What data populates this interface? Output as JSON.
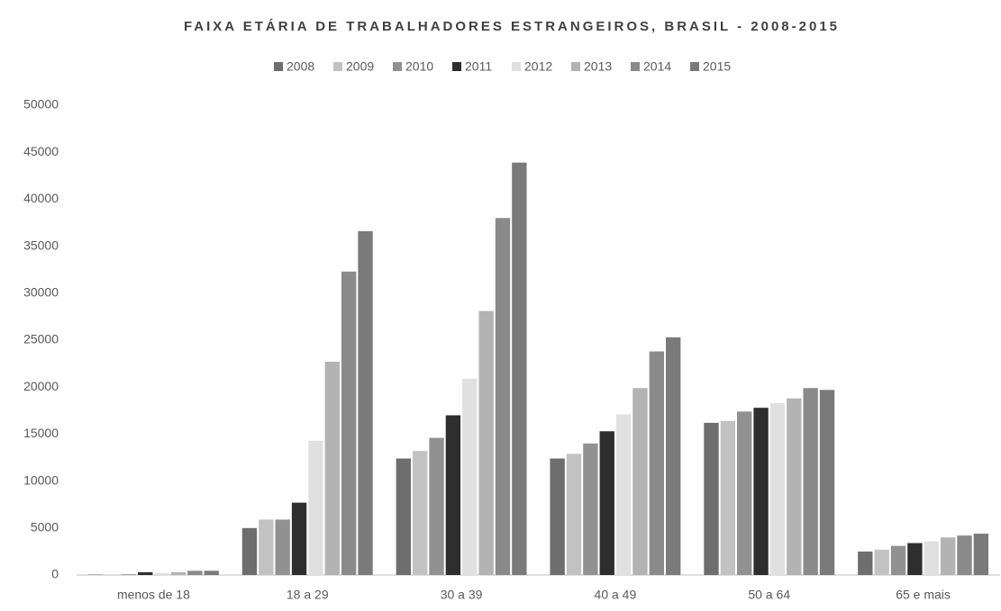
{
  "chart_data": {
    "type": "bar",
    "title": "FAIXA ETÁRIA DE TRABALHADORES ESTRANGEIROS, BRASIL - 2008-2015",
    "categories": [
      "menos de 18",
      "18 a 29",
      "30 a 39",
      "40 a 49",
      "50 a 64",
      "65 e mais"
    ],
    "series": [
      {
        "name": "2008",
        "color": "#6e6e6e",
        "values": [
          50,
          5000,
          12400,
          12400,
          16200,
          2500
        ]
      },
      {
        "name": "2009",
        "color": "#c2c2c2",
        "values": [
          50,
          5900,
          13200,
          12900,
          16400,
          2700
        ]
      },
      {
        "name": "2010",
        "color": "#919191",
        "values": [
          80,
          5900,
          14600,
          14000,
          17400,
          3100
        ]
      },
      {
        "name": "2011",
        "color": "#2e2e2e",
        "values": [
          300,
          7700,
          17000,
          15300,
          17800,
          3400
        ]
      },
      {
        "name": "2012",
        "color": "#e0e0e0",
        "values": [
          200,
          14300,
          20900,
          17100,
          18300,
          3600
        ]
      },
      {
        "name": "2013",
        "color": "#b3b3b3",
        "values": [
          300,
          22700,
          28100,
          19900,
          18800,
          4000
        ]
      },
      {
        "name": "2014",
        "color": "#8a8a8a",
        "values": [
          450,
          32300,
          38000,
          23800,
          19900,
          4200
        ]
      },
      {
        "name": "2015",
        "color": "#7a7a7a",
        "values": [
          450,
          36600,
          43900,
          25300,
          19700,
          4400
        ]
      }
    ],
    "ylim": [
      0,
      50000
    ],
    "yticks": [
      0,
      5000,
      10000,
      15000,
      20000,
      25000,
      30000,
      35000,
      40000,
      45000,
      50000
    ],
    "grid": false,
    "legend": "top"
  }
}
